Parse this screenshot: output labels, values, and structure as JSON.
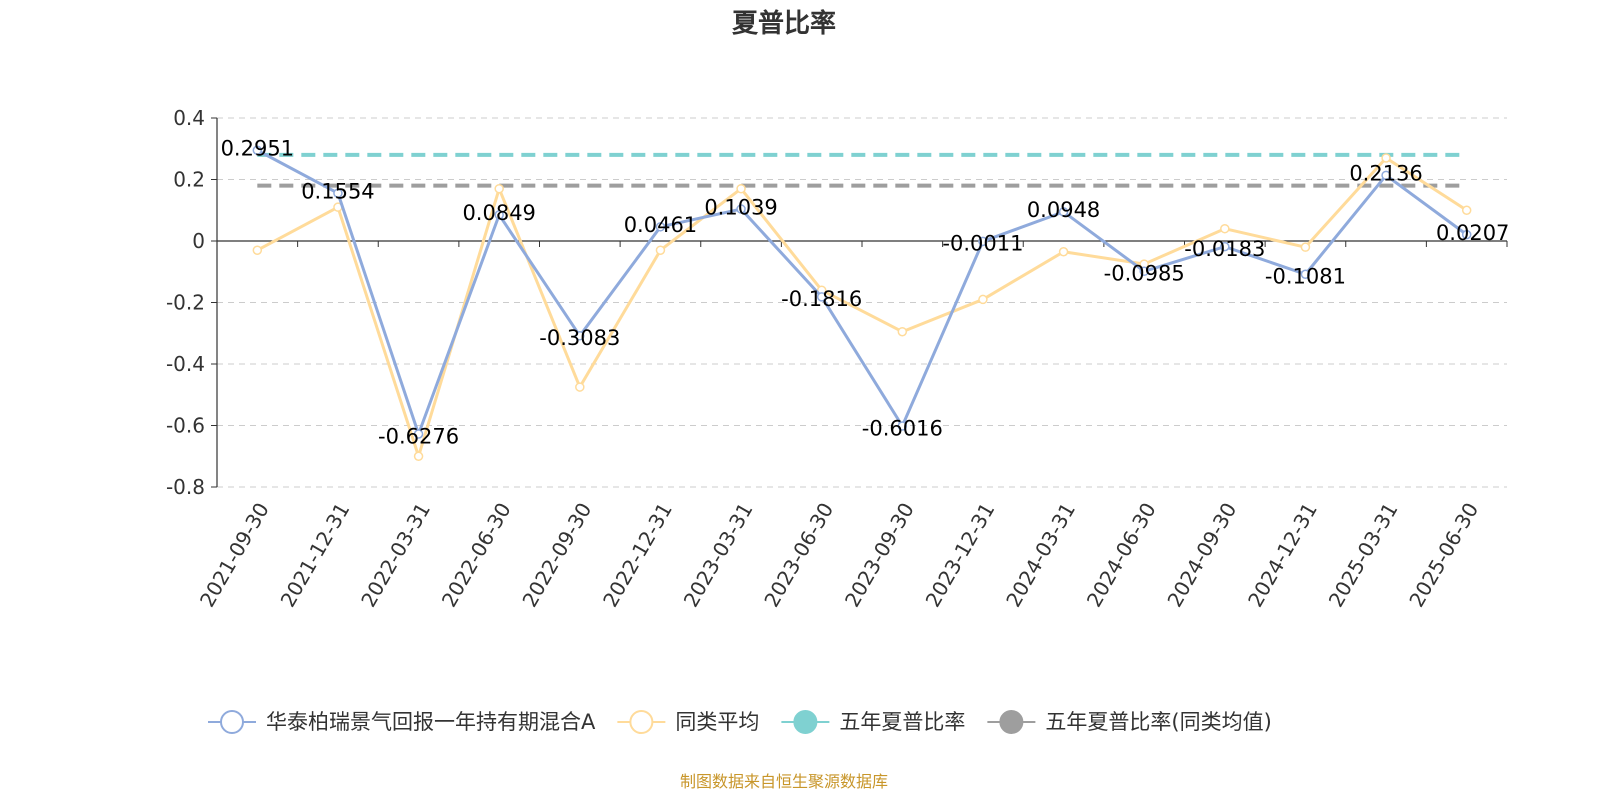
{
  "chart_data": {
    "type": "line",
    "title": "夏普比率",
    "categories": [
      "2021-09-30",
      "2021-12-31",
      "2022-03-31",
      "2022-06-30",
      "2022-09-30",
      "2022-12-31",
      "2023-03-31",
      "2023-06-30",
      "2023-09-30",
      "2023-12-31",
      "2024-03-31",
      "2024-06-30",
      "2024-09-30",
      "2024-12-31",
      "2025-03-31",
      "2025-06-30"
    ],
    "series": [
      {
        "name": "华泰柏瑞景气回报一年持有期混合A",
        "color": "#8faadc",
        "values": [
          0.2951,
          0.1554,
          -0.6276,
          0.0849,
          -0.3083,
          0.0461,
          0.1039,
          -0.1816,
          -0.6016,
          -0.0011,
          0.0948,
          -0.0985,
          -0.0183,
          -0.1081,
          0.2136,
          0.0207
        ],
        "data_labels": [
          "0.2951",
          "0.1554",
          "-0.6276",
          "0.0849",
          "-0.3083",
          "0.0461",
          "0.1039",
          "-0.1816",
          "-0.6016",
          "-0.0011",
          "0.0948",
          "-0.0985",
          "-0.0183",
          "-0.1081",
          "0.2136",
          "0.0207"
        ]
      },
      {
        "name": "同类平均",
        "color": "#ffdb9a",
        "values": [
          -0.03,
          0.11,
          -0.7,
          0.17,
          -0.475,
          -0.03,
          0.17,
          -0.16,
          -0.295,
          -0.19,
          -0.035,
          -0.075,
          0.04,
          -0.02,
          0.27,
          0.1
        ]
      }
    ],
    "reference_lines": [
      {
        "name": "五年夏普比率",
        "value": 0.28,
        "color": "#7fd1d1"
      },
      {
        "name": "五年夏普比率(同类均值)",
        "value": 0.18,
        "color": "#9e9e9e"
      }
    ],
    "y_ticks": [
      "0.4",
      "0.2",
      "0",
      "-0.2",
      "-0.4",
      "-0.6",
      "-0.8"
    ],
    "ylim": [
      -0.8,
      0.4
    ],
    "grid": true,
    "legend_position": "bottom"
  },
  "legend": {
    "items": [
      {
        "label": "华泰柏瑞景气回报一年持有期混合A",
        "icon": "hollow-circle-line",
        "color": "#8faadc"
      },
      {
        "label": "同类平均",
        "icon": "hollow-circle-line",
        "color": "#ffdb9a"
      },
      {
        "label": "五年夏普比率",
        "icon": "filled-circle-line",
        "color": "#7fd1d1"
      },
      {
        "label": "五年夏普比率(同类均值)",
        "icon": "filled-circle-line",
        "color": "#9e9e9e"
      }
    ]
  },
  "source_note": "制图数据来自恒生聚源数据库"
}
